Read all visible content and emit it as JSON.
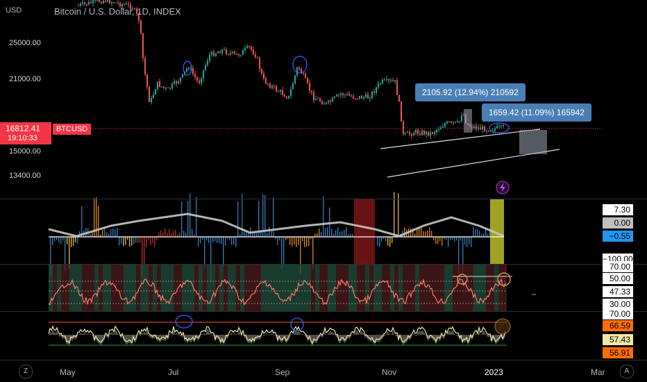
{
  "header": {
    "currency": "USD",
    "title": "Bitcoin / U.S. Dollar, 1D, INDEX"
  },
  "price_axis": {
    "ticks": [
      "25000.00",
      "21000.00",
      "15000.00",
      "13400.00"
    ]
  },
  "current_price": {
    "value": "16812.41",
    "countdown": "19:10:33",
    "symbol": "BTCUSD"
  },
  "callouts": {
    "a": "2105.92 (12.94%) 210592",
    "b": "1659.42 (11.09%) 165942"
  },
  "pane1": {
    "values": [
      "7.30",
      "0.00",
      "−0.55",
      "−100.00"
    ]
  },
  "pane2": {
    "values": [
      "70.00",
      "50.00",
      "47.33",
      "30.00"
    ]
  },
  "pane3": {
    "values": [
      "70.00",
      "66.59",
      "57.43",
      "56.91"
    ]
  },
  "time_axis": {
    "labels": [
      "May",
      "Jul",
      "Sep",
      "Nov",
      "2023",
      "Mar"
    ]
  },
  "buttons": {
    "zoom": "Z",
    "auto": "A"
  },
  "colors": {
    "up": "#26a69a",
    "down": "#ef5350",
    "accent": "#f23645",
    "callout": "#4a7fb5"
  }
}
